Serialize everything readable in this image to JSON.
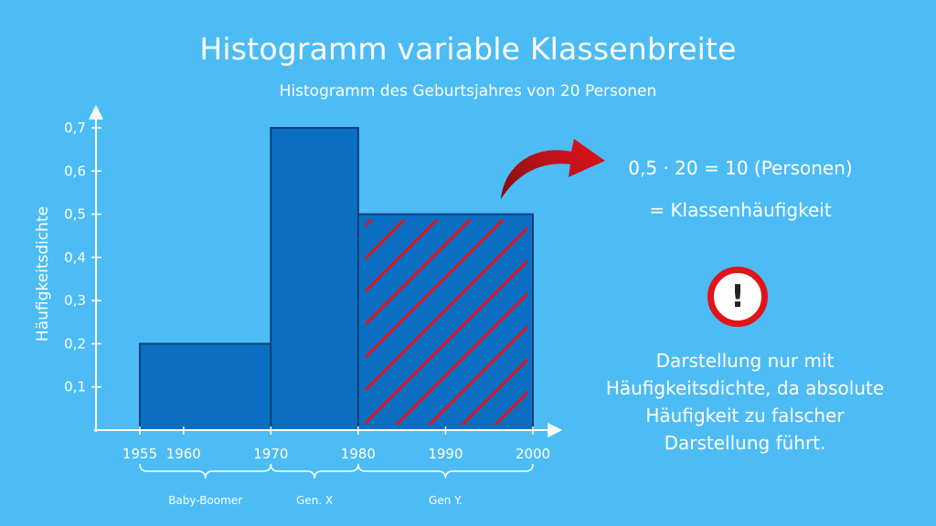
{
  "header": {
    "title": "Histogramm variable Klassenbreite",
    "subtitle": "Histogramm des Geburtsjahres von 20 Personen"
  },
  "chart_data": {
    "type": "bar",
    "title": "Histogramm variable Klassenbreite",
    "subtitle": "Histogramm des Geburtsjahres von 20 Personen",
    "xlabel": "",
    "ylabel": "Häufigkeitsdichte",
    "xlim": [
      1955,
      2000
    ],
    "ylim": [
      0,
      0.7
    ],
    "bins": [
      {
        "from": 1955,
        "to": 1970,
        "density": 0.2,
        "highlighted": false
      },
      {
        "from": 1970,
        "to": 1980,
        "density": 0.7,
        "highlighted": false
      },
      {
        "from": 1980,
        "to": 2000,
        "density": 0.5,
        "highlighted": true
      }
    ],
    "x_ticks": [
      {
        "value": 1955,
        "label": "1955"
      },
      {
        "value": 1960,
        "label": "1960"
      },
      {
        "value": 1970,
        "label": "1970"
      },
      {
        "value": 1980,
        "label": "1980"
      },
      {
        "value": 1990,
        "label": "1990"
      },
      {
        "value": 2000,
        "label": "2000"
      }
    ],
    "y_ticks": [
      {
        "value": 0.1,
        "label": "0,1"
      },
      {
        "value": 0.2,
        "label": "0,2"
      },
      {
        "value": 0.3,
        "label": "0,3"
      },
      {
        "value": 0.4,
        "label": "0,4"
      },
      {
        "value": 0.5,
        "label": "0,5"
      },
      {
        "value": 0.6,
        "label": "0,6"
      },
      {
        "value": 0.7,
        "label": "0,7"
      }
    ],
    "groups": [
      {
        "from": 1955,
        "to": 1970,
        "label": "Baby-Boomer"
      },
      {
        "from": 1970,
        "to": 1980,
        "label": "Gen. X"
      },
      {
        "from": 1980,
        "to": 2000,
        "label": "Gen Y."
      }
    ],
    "grid": false,
    "colors": {
      "bar": "#0a6fc2",
      "bar_stroke": "#0b3f7a",
      "hatch": "#e3131a",
      "axis": "#ffffff"
    }
  },
  "annotation": {
    "formula": "0,5 · 20 = 10 (Personen)",
    "result": "= Klassenhäufigkeit",
    "arrow_color": "#c4121a"
  },
  "warning": {
    "icon": "exclamation-icon",
    "glyph": "!",
    "lines": [
      "Darstellung nur mit",
      "Häufigkeitsdichte, da absolute",
      "Häufigkeit zu falscher",
      "Darstellung führt."
    ]
  }
}
